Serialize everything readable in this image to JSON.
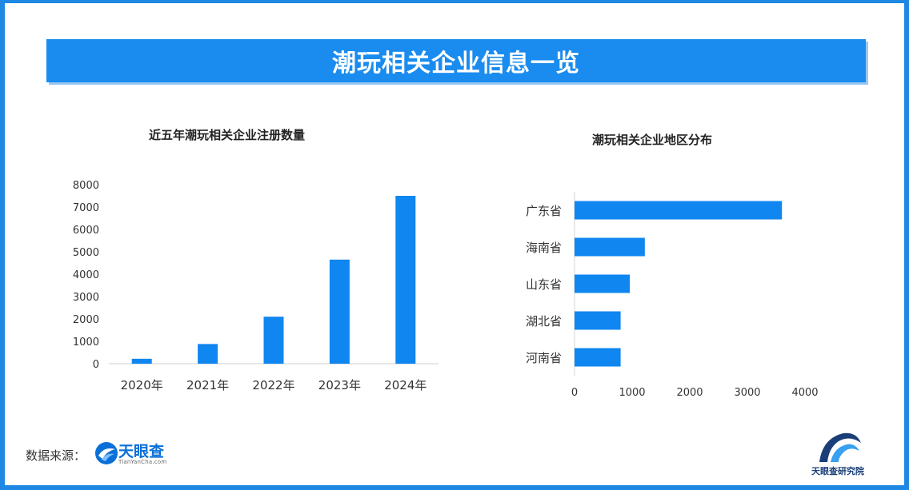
{
  "header": {
    "title": "潮玩相关企业信息一览"
  },
  "colors": {
    "accent": "#1a8cf0",
    "bar": "#0f86f0",
    "frame": "#1e88e5"
  },
  "chart_data": [
    {
      "type": "bar",
      "title": "近五年潮玩相关企业注册数量",
      "categories": [
        "2020年",
        "2021年",
        "2022年",
        "2023年",
        "2024年"
      ],
      "values": [
        220,
        880,
        2100,
        4650,
        7500
      ],
      "ylim": [
        0,
        8000
      ],
      "yticks": [
        0,
        1000,
        2000,
        3000,
        4000,
        5000,
        6000,
        7000,
        8000
      ],
      "grid": false
    },
    {
      "type": "bar",
      "orientation": "horizontal",
      "title": "潮玩相关企业地区分布",
      "categories": [
        "广东省",
        "海南省",
        "山东省",
        "湖北省",
        "河南省"
      ],
      "values": [
        3600,
        1220,
        960,
        800,
        800
      ],
      "xlim": [
        0,
        4000
      ],
      "xticks": [
        0,
        1000,
        2000,
        3000,
        4000
      ],
      "grid": false
    }
  ],
  "footer": {
    "source_label": "数据来源：",
    "source_logo_name": "天眼查",
    "source_logo_url": "TianYanCha.com",
    "institute_name": "天眼查研究院"
  }
}
